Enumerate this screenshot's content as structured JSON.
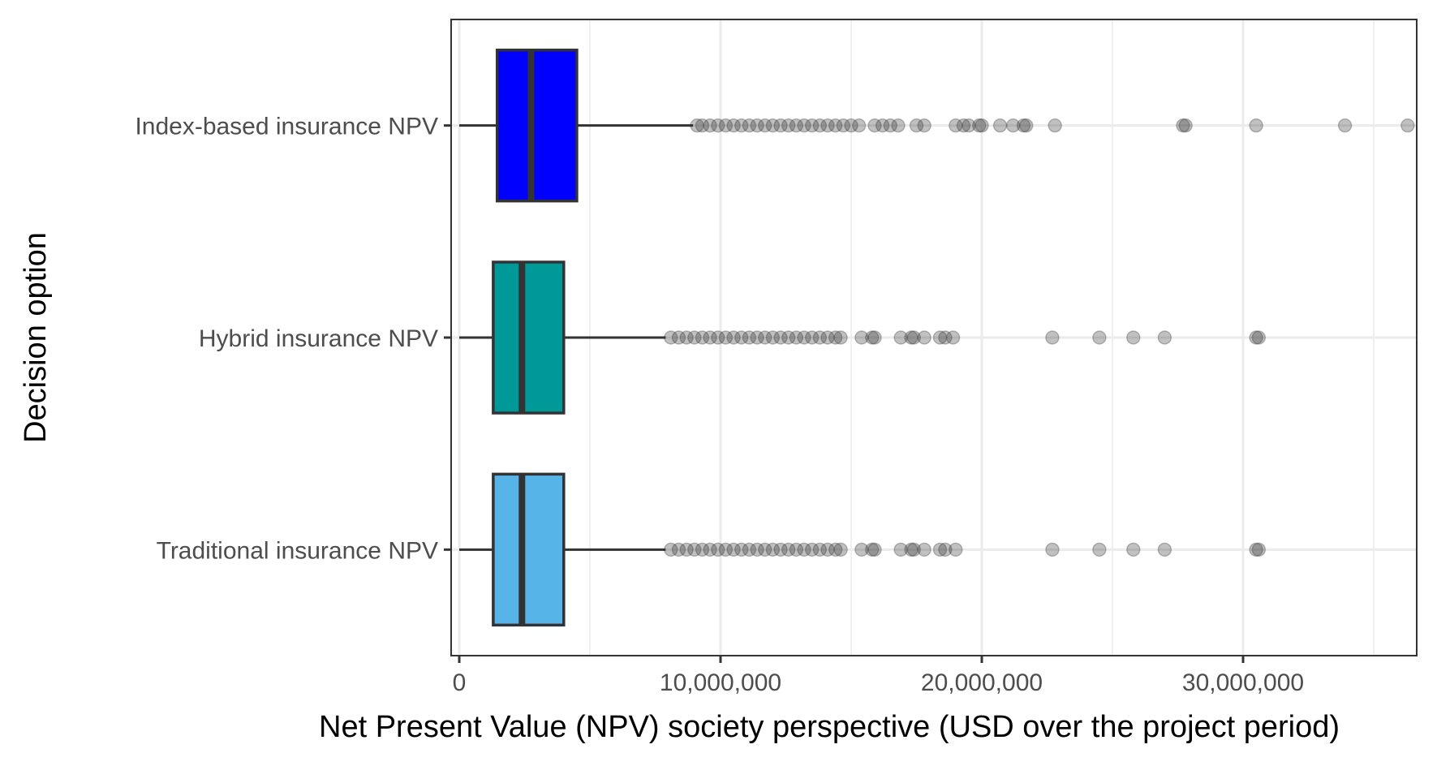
{
  "chart_data": {
    "type": "boxplot",
    "orientation": "horizontal",
    "xlabel": "Net Present Value (NPV) society perspective (USD over the project period)",
    "ylabel": "Decision option",
    "xlim": [
      -300000,
      36500000
    ],
    "xticks": [
      {
        "value": 0,
        "label": "0"
      },
      {
        "value": 10000000,
        "label": "10,000,000"
      },
      {
        "value": 20000000,
        "label": "20,000,000"
      },
      {
        "value": 30000000,
        "label": "30,000,000"
      }
    ],
    "grid": true,
    "series": [
      {
        "category": "Index-based insurance NPV",
        "fill": "#0000ff",
        "whisker_low": 0,
        "q1": 1450000,
        "median": 2750000,
        "q3": 4500000,
        "whisker_high": 8950000,
        "outliers": [
          9100000,
          9300000,
          9600000,
          9900000,
          10200000,
          10500000,
          10800000,
          11100000,
          11400000,
          11700000,
          12000000,
          12300000,
          12600000,
          12900000,
          13200000,
          13500000,
          13800000,
          14100000,
          14400000,
          14700000,
          15000000,
          15300000,
          15900000,
          16200000,
          16500000,
          16800000,
          17500000,
          17800000,
          19000000,
          19300000,
          19500000,
          19900000,
          20000000,
          20700000,
          21200000,
          21600000,
          21700000,
          22800000,
          27700000,
          27800000,
          30500000,
          33900000,
          36300000
        ]
      },
      {
        "category": "Hybrid insurance NPV",
        "fill": "#009999",
        "whisker_low": 0,
        "q1": 1300000,
        "median": 2400000,
        "q3": 4000000,
        "whisker_high": 7900000,
        "outliers": [
          8100000,
          8400000,
          8700000,
          9000000,
          9300000,
          9600000,
          9900000,
          10200000,
          10500000,
          10800000,
          11100000,
          11400000,
          11700000,
          12000000,
          12300000,
          12600000,
          12900000,
          13200000,
          13500000,
          13800000,
          14100000,
          14400000,
          14600000,
          15400000,
          15800000,
          15900000,
          16900000,
          17300000,
          17400000,
          17800000,
          18400000,
          18600000,
          18900000,
          22700000,
          24500000,
          25800000,
          27000000,
          30500000,
          30600000
        ]
      },
      {
        "category": "Traditional insurance NPV",
        "fill": "#56b4e9",
        "whisker_low": 0,
        "q1": 1300000,
        "median": 2400000,
        "q3": 4000000,
        "whisker_high": 7900000,
        "outliers": [
          8100000,
          8400000,
          8700000,
          9000000,
          9300000,
          9600000,
          9900000,
          10200000,
          10500000,
          10800000,
          11100000,
          11400000,
          11700000,
          12000000,
          12300000,
          12600000,
          12900000,
          13200000,
          13500000,
          13800000,
          14100000,
          14400000,
          14600000,
          15400000,
          15800000,
          15900000,
          16900000,
          17300000,
          17400000,
          17800000,
          18400000,
          18600000,
          19000000,
          22700000,
          24500000,
          25800000,
          27000000,
          30500000,
          30600000
        ]
      }
    ]
  }
}
